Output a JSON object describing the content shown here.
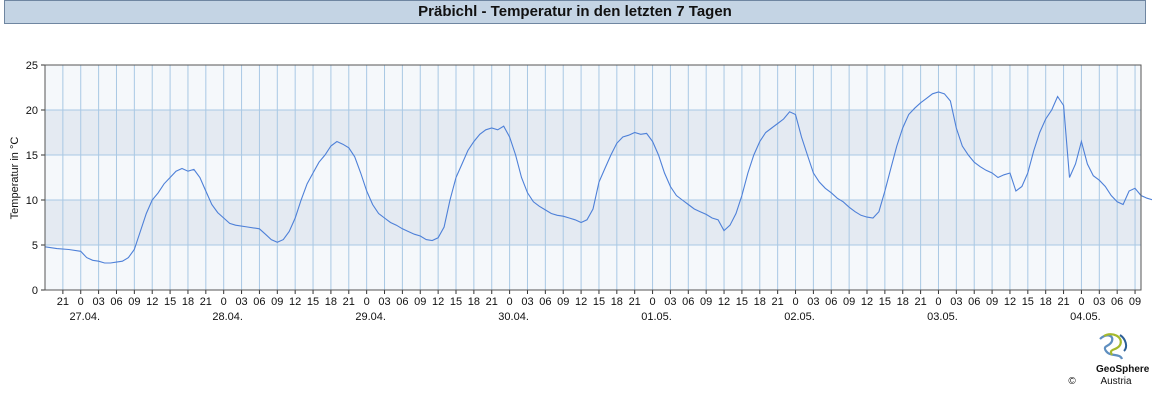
{
  "title": "Präbichl - Temperatur in den letzten 7 Tagen",
  "logo": {
    "name": "GeoSphere",
    "sub": "Austria",
    "copyright": "©"
  },
  "colors": {
    "line": "#4e80d8",
    "band_dark": "#e4eaf2",
    "band_light": "#f5f8fb",
    "grid": "#a9c8e4",
    "title_bg": "#c4d4e4"
  },
  "chart_data": {
    "type": "line",
    "title": "Präbichl - Temperatur in den letzten 7 Tagen",
    "xlabel": "",
    "ylabel": "Temperatur in °C",
    "ylim": [
      0,
      25
    ],
    "yticks": [
      0,
      5,
      10,
      15,
      20,
      25
    ],
    "x_unit": "hours (series starts 26.04. 18:00, spans to 04.05. ~10:00)",
    "xlim_hours": [
      0,
      184
    ],
    "hour_labels": [
      "21",
      "0",
      "03",
      "06",
      "09",
      "12",
      "15",
      "18",
      "21",
      "0",
      "03",
      "06",
      "09",
      "12",
      "15",
      "18",
      "21",
      "0",
      "03",
      "06",
      "09",
      "12",
      "15",
      "18",
      "21",
      "0",
      "03",
      "06",
      "09",
      "12",
      "15",
      "18",
      "21",
      "0",
      "03",
      "06",
      "09",
      "12",
      "15",
      "18",
      "21",
      "0",
      "03",
      "06",
      "09",
      "12",
      "15",
      "18",
      "21",
      "0",
      "03",
      "06",
      "09",
      "12",
      "15",
      "18",
      "21",
      "0",
      "03",
      "06",
      "09"
    ],
    "date_labels": [
      "27.04.",
      "28.04.",
      "29.04.",
      "30.04.",
      "01.05.",
      "02.05.",
      "03.05.",
      "04.05."
    ],
    "grid": true,
    "series": [
      {
        "name": "Temperatur",
        "points": [
          [
            0,
            4.8
          ],
          [
            2,
            4.6
          ],
          [
            4,
            4.5
          ],
          [
            6,
            4.3
          ],
          [
            7,
            3.6
          ],
          [
            8,
            3.3
          ],
          [
            9,
            3.2
          ],
          [
            10,
            3.0
          ],
          [
            11,
            3.0
          ],
          [
            12,
            3.1
          ],
          [
            13,
            3.2
          ],
          [
            14,
            3.6
          ],
          [
            15,
            4.5
          ],
          [
            16,
            6.5
          ],
          [
            17,
            8.5
          ],
          [
            18,
            10.0
          ],
          [
            19,
            10.8
          ],
          [
            20,
            11.8
          ],
          [
            21,
            12.5
          ],
          [
            22,
            13.2
          ],
          [
            23,
            13.5
          ],
          [
            24,
            13.2
          ],
          [
            25,
            13.4
          ],
          [
            26,
            12.5
          ],
          [
            27,
            11.0
          ],
          [
            28,
            9.5
          ],
          [
            29,
            8.6
          ],
          [
            30,
            8.0
          ],
          [
            31,
            7.4
          ],
          [
            32,
            7.2
          ],
          [
            34,
            7.0
          ],
          [
            36,
            6.8
          ],
          [
            37,
            6.2
          ],
          [
            38,
            5.6
          ],
          [
            39,
            5.3
          ],
          [
            40,
            5.6
          ],
          [
            41,
            6.5
          ],
          [
            42,
            8.0
          ],
          [
            43,
            10.0
          ],
          [
            44,
            11.8
          ],
          [
            45,
            13.0
          ],
          [
            46,
            14.2
          ],
          [
            47,
            15.0
          ],
          [
            48,
            16.0
          ],
          [
            49,
            16.5
          ],
          [
            50,
            16.2
          ],
          [
            51,
            15.8
          ],
          [
            52,
            14.8
          ],
          [
            53,
            13.0
          ],
          [
            54,
            11.0
          ],
          [
            55,
            9.5
          ],
          [
            56,
            8.5
          ],
          [
            57,
            8.0
          ],
          [
            58,
            7.5
          ],
          [
            59,
            7.2
          ],
          [
            60,
            6.8
          ],
          [
            61,
            6.5
          ],
          [
            62,
            6.2
          ],
          [
            63,
            6.0
          ],
          [
            64,
            5.6
          ],
          [
            65,
            5.5
          ],
          [
            66,
            5.8
          ],
          [
            67,
            7.0
          ],
          [
            68,
            10.0
          ],
          [
            69,
            12.5
          ],
          [
            70,
            14.0
          ],
          [
            71,
            15.5
          ],
          [
            72,
            16.5
          ],
          [
            73,
            17.3
          ],
          [
            74,
            17.8
          ],
          [
            75,
            18.0
          ],
          [
            76,
            17.8
          ],
          [
            77,
            18.2
          ],
          [
            78,
            17.0
          ],
          [
            79,
            15.0
          ],
          [
            80,
            12.5
          ],
          [
            81,
            10.8
          ],
          [
            82,
            9.8
          ],
          [
            83,
            9.3
          ],
          [
            84,
            8.9
          ],
          [
            85,
            8.5
          ],
          [
            86,
            8.3
          ],
          [
            87,
            8.2
          ],
          [
            88,
            8.0
          ],
          [
            89,
            7.8
          ],
          [
            90,
            7.5
          ],
          [
            91,
            7.8
          ],
          [
            92,
            9.0
          ],
          [
            93,
            12.0
          ],
          [
            94,
            13.5
          ],
          [
            95,
            15.0
          ],
          [
            96,
            16.3
          ],
          [
            97,
            17.0
          ],
          [
            98,
            17.2
          ],
          [
            99,
            17.5
          ],
          [
            100,
            17.3
          ],
          [
            101,
            17.4
          ],
          [
            102,
            16.5
          ],
          [
            103,
            15.0
          ],
          [
            104,
            13.0
          ],
          [
            105,
            11.5
          ],
          [
            106,
            10.5
          ],
          [
            107,
            10.0
          ],
          [
            108,
            9.5
          ],
          [
            109,
            9.0
          ],
          [
            110,
            8.7
          ],
          [
            111,
            8.4
          ],
          [
            112,
            8.0
          ],
          [
            113,
            7.8
          ],
          [
            114,
            6.6
          ],
          [
            115,
            7.2
          ],
          [
            116,
            8.5
          ],
          [
            117,
            10.5
          ],
          [
            118,
            13.0
          ],
          [
            119,
            15.0
          ],
          [
            120,
            16.5
          ],
          [
            121,
            17.5
          ],
          [
            122,
            18.0
          ],
          [
            123,
            18.5
          ],
          [
            124,
            19.0
          ],
          [
            125,
            19.8
          ],
          [
            126,
            19.5
          ],
          [
            127,
            17.0
          ],
          [
            128,
            15.0
          ],
          [
            129,
            13.0
          ],
          [
            130,
            12.0
          ],
          [
            131,
            11.3
          ],
          [
            132,
            10.8
          ],
          [
            133,
            10.2
          ],
          [
            134,
            9.8
          ],
          [
            135,
            9.2
          ],
          [
            136,
            8.7
          ],
          [
            137,
            8.3
          ],
          [
            138,
            8.1
          ],
          [
            139,
            8.0
          ],
          [
            140,
            8.7
          ],
          [
            141,
            11.0
          ],
          [
            142,
            13.5
          ],
          [
            143,
            16.0
          ],
          [
            144,
            18.0
          ],
          [
            145,
            19.5
          ],
          [
            146,
            20.2
          ],
          [
            147,
            20.8
          ],
          [
            148,
            21.3
          ],
          [
            149,
            21.8
          ],
          [
            150,
            22.0
          ],
          [
            151,
            21.8
          ],
          [
            152,
            21.0
          ],
          [
            153,
            18.0
          ],
          [
            154,
            16.0
          ],
          [
            155,
            15.0
          ],
          [
            156,
            14.2
          ],
          [
            157,
            13.7
          ],
          [
            158,
            13.3
          ],
          [
            159,
            13.0
          ],
          [
            160,
            12.5
          ],
          [
            161,
            12.8
          ],
          [
            162,
            13.0
          ],
          [
            163,
            11.0
          ],
          [
            164,
            11.5
          ],
          [
            165,
            13.0
          ],
          [
            166,
            15.5
          ],
          [
            167,
            17.5
          ],
          [
            168,
            19.0
          ],
          [
            169,
            20.0
          ],
          [
            170,
            21.5
          ],
          [
            171,
            20.5
          ],
          [
            172,
            12.5
          ],
          [
            173,
            14.0
          ],
          [
            174,
            16.5
          ],
          [
            175,
            14.0
          ],
          [
            176,
            12.7
          ],
          [
            177,
            12.2
          ],
          [
            178,
            11.5
          ],
          [
            179,
            10.5
          ],
          [
            180,
            9.8
          ],
          [
            181,
            9.5
          ],
          [
            182,
            11.0
          ],
          [
            183,
            11.3
          ],
          [
            184,
            10.5
          ],
          [
            185,
            10.2
          ],
          [
            186,
            10.0
          ],
          [
            187,
            9.5
          ],
          [
            188,
            9.3
          ],
          [
            189,
            9.7
          ],
          [
            190,
            10.5
          ]
        ]
      }
    ]
  }
}
